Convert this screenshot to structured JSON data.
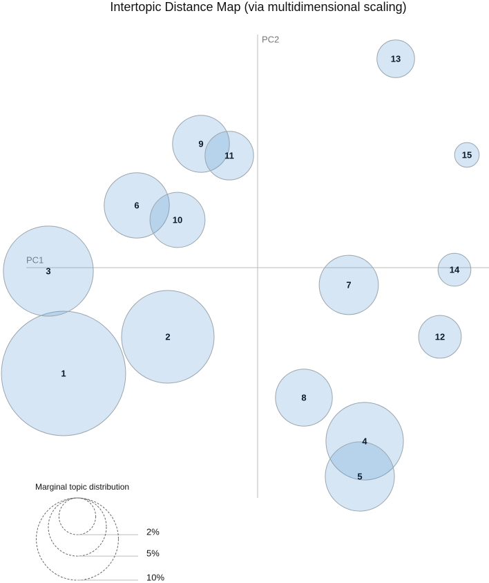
{
  "chart_data": {
    "type": "bubble",
    "title": "Intertopic Distance Map (via multidimensional scaling)",
    "x_label": "PC1",
    "y_label": "PC2",
    "categories": [
      "1",
      "2",
      "3",
      "4",
      "5",
      "6",
      "7",
      "8",
      "9",
      "10",
      "11",
      "12",
      "13",
      "14",
      "15"
    ],
    "x": [
      -2.81,
      -1.3,
      -3.03,
      1.55,
      1.48,
      -1.75,
      1.32,
      0.67,
      -0.82,
      -1.16,
      -0.41,
      2.64,
      2.0,
      2.85,
      3.03
    ],
    "y": [
      -1.53,
      -1.0,
      -0.05,
      -2.51,
      -3.02,
      0.9,
      -0.25,
      -1.88,
      1.79,
      0.69,
      1.62,
      -1.0,
      3.02,
      -0.03,
      1.63
    ],
    "sizes": [
      22.9,
      12.7,
      12.0,
      8.9,
      7.1,
      6.3,
      5.2,
      4.8,
      4.8,
      4.5,
      3.5,
      2.7,
      2.1,
      1.6,
      0.9
    ],
    "color": "#5b9bd5",
    "xlim": [
      -3.35,
      3.35
    ],
    "ylim": [
      -3.33,
      3.37
    ],
    "size_legend": {
      "title": "Marginal topic distribution",
      "values": [
        2,
        5,
        10
      ],
      "value_labels": [
        "2%",
        "5%",
        "10%"
      ]
    }
  }
}
